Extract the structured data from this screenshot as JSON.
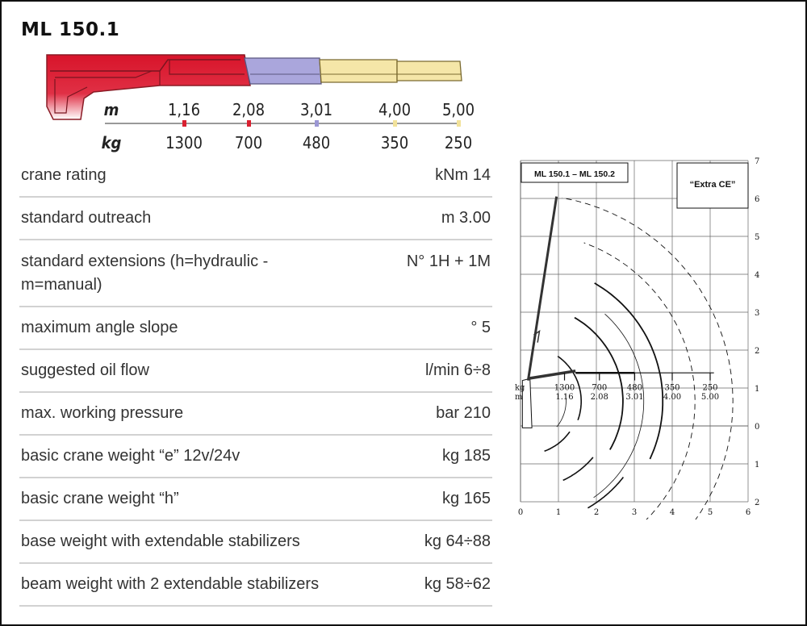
{
  "title": "ML 150.1",
  "boom_scale": {
    "distance_unit": "m",
    "load_unit": "kg",
    "points": [
      {
        "distance": "1,16",
        "load": "1300",
        "color": "#d92030"
      },
      {
        "distance": "2,08",
        "load": "700",
        "color": "#d92030"
      },
      {
        "distance": "3,01",
        "load": "480",
        "color": "#9b97d4"
      },
      {
        "distance": "4,00",
        "load": "350",
        "color": "#f2e29a"
      },
      {
        "distance": "5,00",
        "load": "250",
        "color": "#f2e29a"
      }
    ]
  },
  "specs": [
    {
      "label": "crane rating",
      "value": "kNm 14"
    },
    {
      "label": "standard outreach",
      "value": "m 3.00"
    },
    {
      "label": "standard extensions (h=hydraulic - m=manual)",
      "value": "N° 1H + 1M"
    },
    {
      "label": "maximum angle slope",
      "value": "° 5"
    },
    {
      "label": "suggested oil flow",
      "value": "l/min 6÷8"
    },
    {
      "label": "max. working pressure",
      "value": "bar 210"
    },
    {
      "label": "basic crane weight “e” 12v/24v",
      "value": "kg 185"
    },
    {
      "label": "basic crane weight “h”",
      "value": "kg 165"
    },
    {
      "label": "base weight with extendable stabilizers",
      "value": "kg 64÷88"
    },
    {
      "label": "beam weight with 2 extendable stabilizers",
      "value": "kg 58÷62"
    }
  ],
  "reach_diagram": {
    "model_label": "ML 150.1 – ML 150.2",
    "badge": "“Extra CE”",
    "x_ticks": [
      "0",
      "1",
      "2",
      "3",
      "4",
      "5",
      "6"
    ],
    "y_ticks_up": [
      "0",
      "1",
      "2",
      "3",
      "4",
      "5",
      "6",
      "7"
    ],
    "y_ticks_down": [
      "1",
      "2"
    ],
    "load_label": "kg",
    "reach_label": "m",
    "loads": [
      "1300",
      "700",
      "480",
      "350",
      "250"
    ],
    "reaches": [
      "1.16",
      "2.08",
      "3.01",
      "4.00",
      "5.00"
    ]
  }
}
